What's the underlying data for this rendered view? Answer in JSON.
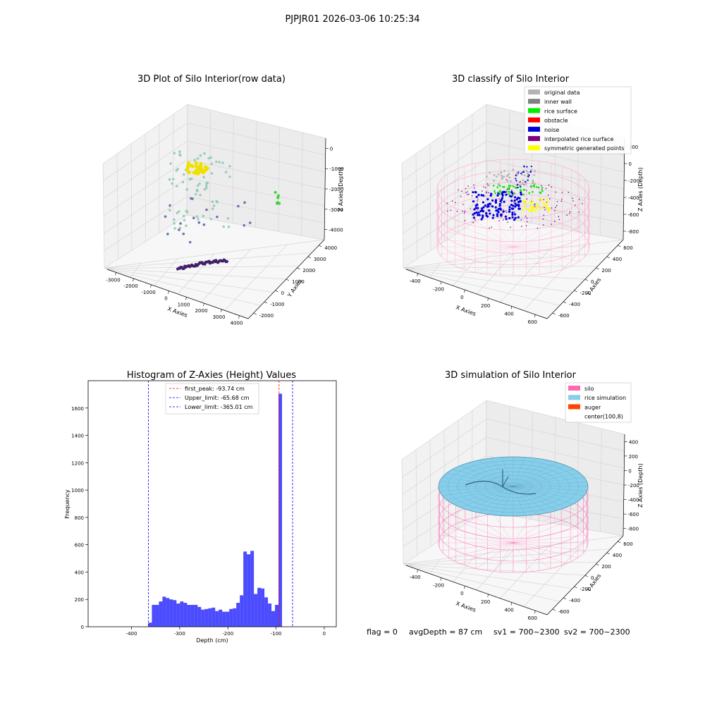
{
  "suptitle": "PJPJR01 2026-03-06 10:25:34",
  "panel_raw": {
    "title": "3D Plot of Silo Interior(row data)",
    "xlabel": "X Axies",
    "ylabel": "Y Axies",
    "zlabel": "Z Axies (Depth)",
    "x_ticks": [
      "-3000",
      "-2000",
      "-1000",
      "0",
      "1000",
      "2000",
      "3000",
      "4000"
    ],
    "y_ticks": [
      "-2000",
      "-1000",
      "0",
      "1000",
      "2000",
      "3000",
      "4000"
    ],
    "z_ticks": [
      "0",
      "-1000",
      "-2000",
      "-3000",
      "-4000"
    ]
  },
  "panel_classify": {
    "title": "3D classify of Silo Interior",
    "xlabel": "X Axies",
    "ylabel": "Y Axies",
    "zlabel": "Z Axies (Depth)",
    "x_ticks": [
      "-400",
      "-200",
      "0",
      "200",
      "400",
      "600"
    ],
    "y_ticks": [
      "-600",
      "-400",
      "-200",
      "0",
      "200",
      "400",
      "600"
    ],
    "z_ticks": [
      "200",
      "0",
      "-200",
      "-400",
      "-600",
      "-800"
    ],
    "legend": [
      {
        "label": "original data",
        "color": "#b4b4b4"
      },
      {
        "label": "inner wall",
        "color": "#808080"
      },
      {
        "label": "rice surface",
        "color": "#00ee00"
      },
      {
        "label": "obstacle",
        "color": "#ff0000"
      },
      {
        "label": "noise",
        "color": "#0000dd"
      },
      {
        "label": "interpolated rice surface",
        "color": "#800080"
      },
      {
        "label": "symmetric generated points",
        "color": "#ffff00"
      }
    ]
  },
  "panel_sim": {
    "title": "3D simulation of Silo Interior",
    "xlabel": "X Axies",
    "ylabel": "Y Axies",
    "zlabel": "Z Axies (Depth)",
    "x_ticks": [
      "-400",
      "-200",
      "0",
      "200",
      "400",
      "600"
    ],
    "y_ticks": [
      "-600",
      "-400",
      "-200",
      "0",
      "200",
      "400",
      "600"
    ],
    "z_ticks": [
      "400",
      "200",
      "0",
      "-200",
      "-400",
      "-600",
      "-800"
    ],
    "legend": [
      {
        "label": "silo",
        "color": "#ff69b4"
      },
      {
        "label": "rice simulation",
        "color": "#87ceeb"
      },
      {
        "label": "auger",
        "color": "#ff4500"
      },
      {
        "label": "center(100,8)",
        "color": "#ffffff"
      }
    ]
  },
  "chart_data": {
    "type": "bar",
    "title": "Histogram of Z-Axies (Height) Values",
    "xlabel": "Depth (cm)",
    "ylabel": "Frequency",
    "xlim": [
      -490,
      25
    ],
    "ylim": [
      0,
      1800
    ],
    "x_ticks": [
      -400,
      -300,
      -200,
      -100,
      0
    ],
    "y_ticks": [
      0,
      200,
      400,
      600,
      800,
      1000,
      1200,
      1400,
      1600
    ],
    "bin_width": 7.3,
    "bin_start": -365,
    "values": [
      30,
      160,
      160,
      185,
      220,
      210,
      200,
      195,
      170,
      185,
      175,
      160,
      160,
      160,
      145,
      125,
      130,
      135,
      140,
      115,
      125,
      110,
      110,
      130,
      135,
      175,
      230,
      550,
      530,
      555,
      240,
      285,
      280,
      215,
      170,
      115,
      160,
      1705
    ],
    "bar_color": "#0000ff",
    "lines": [
      {
        "label": "first_peak: -93.74 cm",
        "value": -93.74,
        "color": "#ff0000"
      },
      {
        "label": "Upper_limit: -65.68 cm",
        "value": -65.68,
        "color": "#0000ff"
      },
      {
        "label": "Lower_limit: -365.01 cm",
        "value": -365.01,
        "color": "#0000ff"
      }
    ]
  },
  "status": {
    "flag": "flag = 0",
    "avg_depth": "avgDepth = 87 cm",
    "sv1": "sv1 = 700~2300",
    "sv2": "sv2 = 700~2300"
  }
}
